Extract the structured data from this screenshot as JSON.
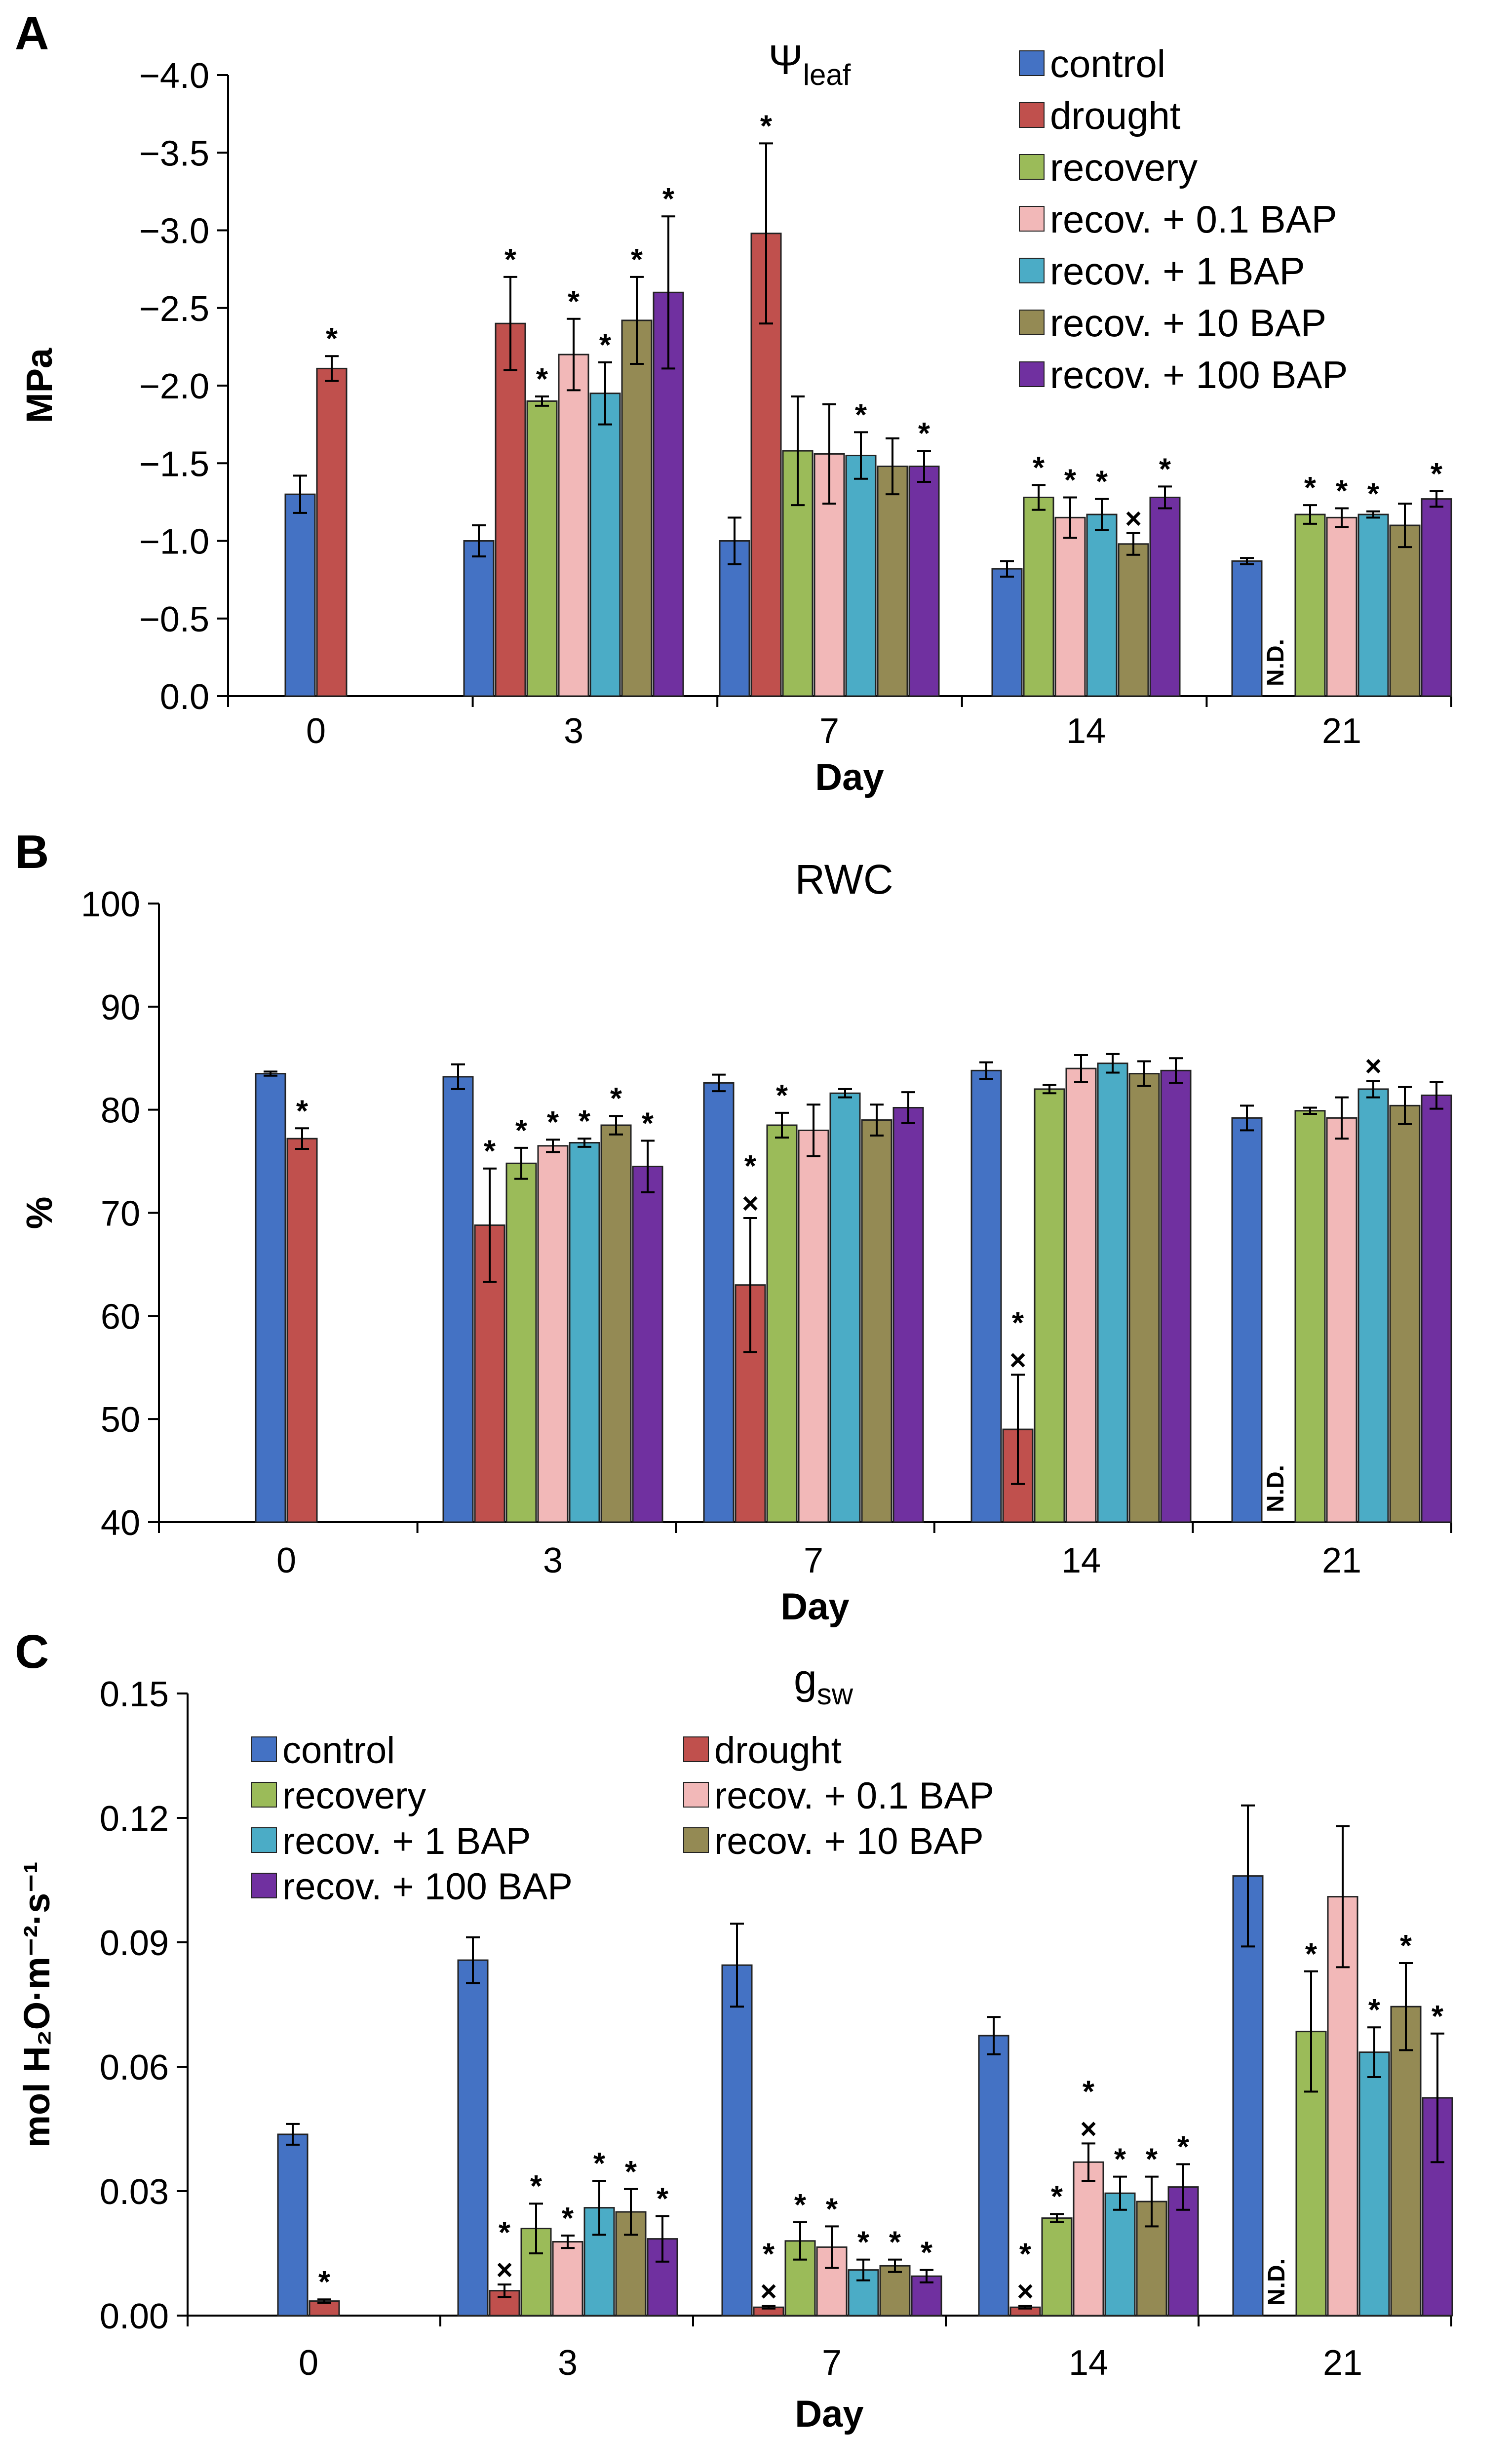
{
  "colors": {
    "control": "#4472C4",
    "drought": "#C0504D",
    "recovery": "#9BBB59",
    "recov_0_1": "#F2B8B8",
    "recov_1": "#4BACC6",
    "recov_10": "#948A54",
    "recov_100": "#7030A0"
  },
  "series_names": [
    "control",
    "drought",
    "recovery",
    "recov. + 0.1 BAP",
    "recov. + 1 BAP",
    "recov. + 10 BAP",
    "recov. + 100 BAP"
  ],
  "nd_label": "N.D.",
  "chart_data": [
    {
      "panel": "A",
      "type": "bar",
      "title": "Ψ",
      "title_sub": "leaf",
      "ylabel": "MPa",
      "xlabel": "Day",
      "categories": [
        "0",
        "3",
        "7",
        "14",
        "21"
      ],
      "ylim": [
        0,
        -4.0
      ],
      "yticks": [
        "0.0",
        "−0.5",
        "−1.0",
        "−1.5",
        "−2.0",
        "−2.5",
        "−3.0",
        "−3.5",
        "−4.0"
      ],
      "ytick_values": [
        0,
        0.5,
        1.0,
        1.5,
        2.0,
        2.5,
        3.0,
        3.5,
        4.0
      ],
      "legend": "top-right",
      "series": [
        {
          "name": "control",
          "values": [
            1.3,
            1.0,
            1.0,
            0.82,
            0.87
          ],
          "errors": [
            0.12,
            0.1,
            0.15,
            0.05,
            0.02
          ],
          "marks": [
            "",
            "",
            "",
            "",
            ""
          ]
        },
        {
          "name": "drought",
          "values": [
            2.11,
            2.4,
            2.98,
            null,
            null
          ],
          "errors": [
            0.08,
            0.3,
            0.58,
            0,
            0
          ],
          "marks": [
            "*",
            "*",
            "*",
            "",
            ""
          ]
        },
        {
          "name": "recovery",
          "values": [
            null,
            1.9,
            1.58,
            1.28,
            1.17
          ],
          "errors": [
            0,
            0.03,
            0.35,
            0.08,
            0.06
          ],
          "marks": [
            "",
            "*",
            "",
            "*",
            "*"
          ]
        },
        {
          "name": "recov. + 0.1 BAP",
          "values": [
            null,
            2.2,
            1.56,
            1.15,
            1.15
          ],
          "errors": [
            0,
            0.23,
            0.32,
            0.13,
            0.06
          ],
          "marks": [
            "",
            "*",
            "",
            "*",
            "*"
          ]
        },
        {
          "name": "recov. + 1 BAP",
          "values": [
            null,
            1.95,
            1.55,
            1.17,
            1.17
          ],
          "errors": [
            0,
            0.2,
            0.15,
            0.1,
            0.02
          ],
          "marks": [
            "",
            "*",
            "*",
            "*",
            "*"
          ]
        },
        {
          "name": "recov. + 10 BAP",
          "values": [
            null,
            2.42,
            1.48,
            0.98,
            1.1
          ],
          "errors": [
            0,
            0.28,
            0.18,
            0.07,
            0.14
          ],
          "marks": [
            "",
            "*",
            "",
            "×",
            ""
          ]
        },
        {
          "name": "recov. + 100 BAP",
          "values": [
            null,
            2.6,
            1.48,
            1.28,
            1.27
          ],
          "errors": [
            0,
            0.49,
            0.1,
            0.07,
            0.05
          ],
          "marks": [
            "",
            "*",
            "*",
            "*",
            "*"
          ]
        }
      ]
    },
    {
      "panel": "B",
      "type": "bar",
      "title": "RWC",
      "title_sub": "",
      "ylabel": "%",
      "xlabel": "Day",
      "categories": [
        "0",
        "3",
        "7",
        "14",
        "21"
      ],
      "ylim": [
        40,
        100
      ],
      "yticks": [
        "40",
        "50",
        "60",
        "70",
        "80",
        "90",
        "100"
      ],
      "ytick_values": [
        40,
        50,
        60,
        70,
        80,
        90,
        100
      ],
      "legend": "none",
      "series": [
        {
          "name": "control",
          "values": [
            83.5,
            83.2,
            82.6,
            83.8,
            79.2
          ],
          "errors": [
            0.2,
            1.2,
            0.8,
            0.8,
            1.2
          ],
          "marks": [
            "",
            "",
            "",
            "",
            ""
          ]
        },
        {
          "name": "drought",
          "values": [
            77.2,
            68.8,
            63.0,
            49.0,
            null
          ],
          "errors": [
            1.0,
            5.5,
            6.5,
            5.3,
            0
          ],
          "marks": [
            "*",
            "*",
            "*|×",
            "*|×",
            ""
          ]
        },
        {
          "name": "recovery",
          "values": [
            null,
            74.8,
            78.5,
            82.0,
            79.9
          ],
          "errors": [
            0,
            1.5,
            1.2,
            0.4,
            0.3
          ],
          "marks": [
            "",
            "*",
            "*",
            "",
            ""
          ]
        },
        {
          "name": "recov. + 0.1 BAP",
          "values": [
            null,
            76.5,
            78.0,
            84.0,
            79.2
          ],
          "errors": [
            0,
            0.6,
            2.5,
            1.3,
            2.0
          ],
          "marks": [
            "",
            "*",
            "",
            "",
            ""
          ]
        },
        {
          "name": "recov. + 1 BAP",
          "values": [
            null,
            76.8,
            81.6,
            84.5,
            82.0
          ],
          "errors": [
            0,
            0.4,
            0.4,
            0.9,
            0.8
          ],
          "marks": [
            "",
            "*",
            "",
            "",
            "×"
          ]
        },
        {
          "name": "recov. + 10 BAP",
          "values": [
            null,
            78.5,
            79.0,
            83.5,
            80.4
          ],
          "errors": [
            0,
            0.9,
            1.5,
            1.2,
            1.8
          ],
          "marks": [
            "",
            "*",
            "",
            "",
            ""
          ]
        },
        {
          "name": "recov. + 100 BAP",
          "values": [
            null,
            74.5,
            80.2,
            83.8,
            81.4
          ],
          "errors": [
            0,
            2.5,
            1.5,
            1.2,
            1.3
          ],
          "marks": [
            "",
            "*",
            "",
            "",
            ""
          ]
        }
      ]
    },
    {
      "panel": "C",
      "type": "bar",
      "title": "g",
      "title_sub": "sw",
      "ylabel": "mol H₂O·m⁻²·s⁻¹",
      "xlabel": "Day",
      "categories": [
        "0",
        "3",
        "7",
        "14",
        "21"
      ],
      "ylim": [
        0,
        0.15
      ],
      "yticks": [
        "0.00",
        "0.03",
        "0.06",
        "0.09",
        "0.12",
        "0.15"
      ],
      "ytick_values": [
        0,
        0.03,
        0.06,
        0.09,
        0.12,
        0.15
      ],
      "legend": "top-left",
      "series": [
        {
          "name": "control",
          "values": [
            0.0437,
            0.0857,
            0.0845,
            0.0675,
            0.106
          ],
          "errors": [
            0.0025,
            0.0055,
            0.01,
            0.0045,
            0.017
          ],
          "marks": [
            "",
            "",
            "",
            "",
            ""
          ]
        },
        {
          "name": "drought",
          "values": [
            0.0035,
            0.006,
            0.002,
            0.002,
            null
          ],
          "errors": [
            0.0004,
            0.0015,
            0.0003,
            0.0003,
            0
          ],
          "marks": [
            "*",
            "*|×",
            "*|×",
            "*|×",
            ""
          ]
        },
        {
          "name": "recovery",
          "values": [
            null,
            0.021,
            0.018,
            0.0235,
            0.0685
          ],
          "errors": [
            0,
            0.006,
            0.0045,
            0.001,
            0.0145
          ],
          "marks": [
            "",
            "*",
            "*",
            "*",
            "*"
          ]
        },
        {
          "name": "recov. + 0.1 BAP",
          "values": [
            null,
            0.0178,
            0.0165,
            0.037,
            0.101
          ],
          "errors": [
            0,
            0.0015,
            0.005,
            0.0045,
            0.017
          ],
          "marks": [
            "",
            "*",
            "*",
            "*|×",
            ""
          ]
        },
        {
          "name": "recov. + 1 BAP",
          "values": [
            null,
            0.026,
            0.011,
            0.0295,
            0.0635
          ],
          "errors": [
            0,
            0.0065,
            0.0025,
            0.004,
            0.006
          ],
          "marks": [
            "",
            "*",
            "*",
            "*",
            "*"
          ]
        },
        {
          "name": "recov. + 10 BAP",
          "values": [
            null,
            0.025,
            0.012,
            0.0275,
            0.0745
          ],
          "errors": [
            0,
            0.0055,
            0.0015,
            0.006,
            0.0105
          ],
          "marks": [
            "",
            "*",
            "*",
            "*",
            "*"
          ]
        },
        {
          "name": "recov. + 100 BAP",
          "values": [
            null,
            0.0185,
            0.0095,
            0.031,
            0.0525
          ],
          "errors": [
            0,
            0.0055,
            0.0015,
            0.0055,
            0.0155
          ],
          "marks": [
            "",
            "*",
            "*",
            "*",
            "*"
          ]
        }
      ]
    }
  ]
}
